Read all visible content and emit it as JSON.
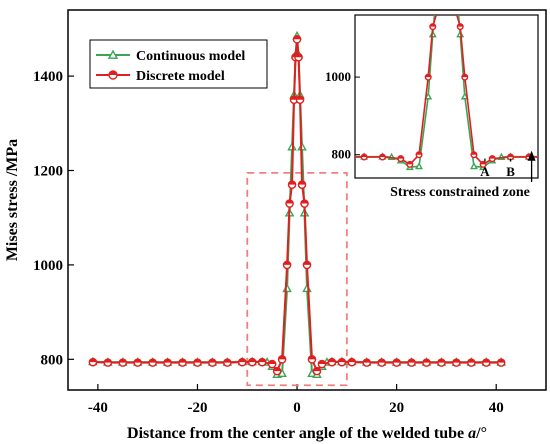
{
  "chart_data": {
    "type": "line",
    "xlabel": "Distance from the center angle of the welded tube",
    "xlabel_symbol": "a",
    "xlabel_unit": "/°",
    "ylabel": "Mises stress /MPa",
    "xlim": [
      -46,
      50
    ],
    "ylim": [
      735,
      1540
    ],
    "x_ticks": [
      "-40",
      "-20",
      "0",
      "20",
      "40"
    ],
    "y_ticks": [
      "800",
      "1000",
      "1200",
      "1400"
    ],
    "legend_position": "top-left",
    "highlight_box": {
      "x_range": [
        -10,
        10
      ],
      "y_range": [
        745,
        1195
      ],
      "color": "#f08080"
    },
    "series": [
      {
        "name": "Continuous model",
        "color": "#3aa655",
        "marker": "triangle",
        "points": [
          [
            -41,
            795
          ],
          [
            -38,
            794
          ],
          [
            -35,
            794
          ],
          [
            -32,
            794
          ],
          [
            -29,
            794
          ],
          [
            -26,
            794
          ],
          [
            -23,
            794
          ],
          [
            -20,
            794
          ],
          [
            -17,
            794
          ],
          [
            -14,
            794
          ],
          [
            -11,
            795
          ],
          [
            -9,
            795
          ],
          [
            -7,
            795
          ],
          [
            -6,
            794
          ],
          [
            -5,
            785
          ],
          [
            -4,
            768
          ],
          [
            -3,
            770
          ],
          [
            -2,
            950
          ],
          [
            -1.5,
            1110
          ],
          [
            -1,
            1250
          ],
          [
            -0.6,
            1360
          ],
          [
            -0.3,
            1445
          ],
          [
            0,
            1485
          ],
          [
            0.3,
            1445
          ],
          [
            0.6,
            1360
          ],
          [
            1,
            1250
          ],
          [
            1.5,
            1110
          ],
          [
            2,
            950
          ],
          [
            3,
            770
          ],
          [
            4,
            768
          ],
          [
            5,
            785
          ],
          [
            6,
            794
          ],
          [
            7,
            795
          ],
          [
            9,
            795
          ],
          [
            11,
            795
          ],
          [
            14,
            794
          ],
          [
            17,
            794
          ],
          [
            20,
            794
          ],
          [
            23,
            794
          ],
          [
            26,
            794
          ],
          [
            29,
            794
          ],
          [
            32,
            794
          ],
          [
            35,
            794
          ],
          [
            38,
            794
          ],
          [
            41,
            794
          ]
        ]
      },
      {
        "name": "Discrete model",
        "color": "#e02020",
        "marker": "circle",
        "points": [
          [
            -41,
            794
          ],
          [
            -38,
            793
          ],
          [
            -35,
            793
          ],
          [
            -32,
            793
          ],
          [
            -29,
            793
          ],
          [
            -26,
            793
          ],
          [
            -23,
            793
          ],
          [
            -20,
            793
          ],
          [
            -17,
            793
          ],
          [
            -14,
            793
          ],
          [
            -11,
            794
          ],
          [
            -9,
            794
          ],
          [
            -7,
            794
          ],
          [
            -5,
            790
          ],
          [
            -4,
            775
          ],
          [
            -3,
            800
          ],
          [
            -2,
            1000
          ],
          [
            -1.5,
            1130
          ],
          [
            -1,
            1170
          ],
          [
            -0.6,
            1350
          ],
          [
            -0.3,
            1440
          ],
          [
            0,
            1478
          ],
          [
            0.3,
            1440
          ],
          [
            0.6,
            1350
          ],
          [
            1,
            1170
          ],
          [
            1.5,
            1130
          ],
          [
            2,
            1000
          ],
          [
            3,
            800
          ],
          [
            4,
            775
          ],
          [
            5,
            790
          ],
          [
            7,
            794
          ],
          [
            9,
            794
          ],
          [
            11,
            794
          ],
          [
            14,
            793
          ],
          [
            17,
            793
          ],
          [
            20,
            793
          ],
          [
            23,
            793
          ],
          [
            26,
            793
          ],
          [
            29,
            793
          ],
          [
            32,
            793
          ],
          [
            35,
            793
          ],
          [
            38,
            793
          ],
          [
            41,
            793
          ]
        ]
      }
    ],
    "inset": {
      "xlim": [
        -10,
        10
      ],
      "ylim": [
        740,
        1160
      ],
      "y_ticks": [
        "800",
        "1000"
      ],
      "markers": [
        {
          "label": "A",
          "x": 4.2
        },
        {
          "label": "B",
          "x": 7.0
        }
      ],
      "annotation": "Stress constrained zone",
      "annotation_target_x": 9.3
    }
  }
}
